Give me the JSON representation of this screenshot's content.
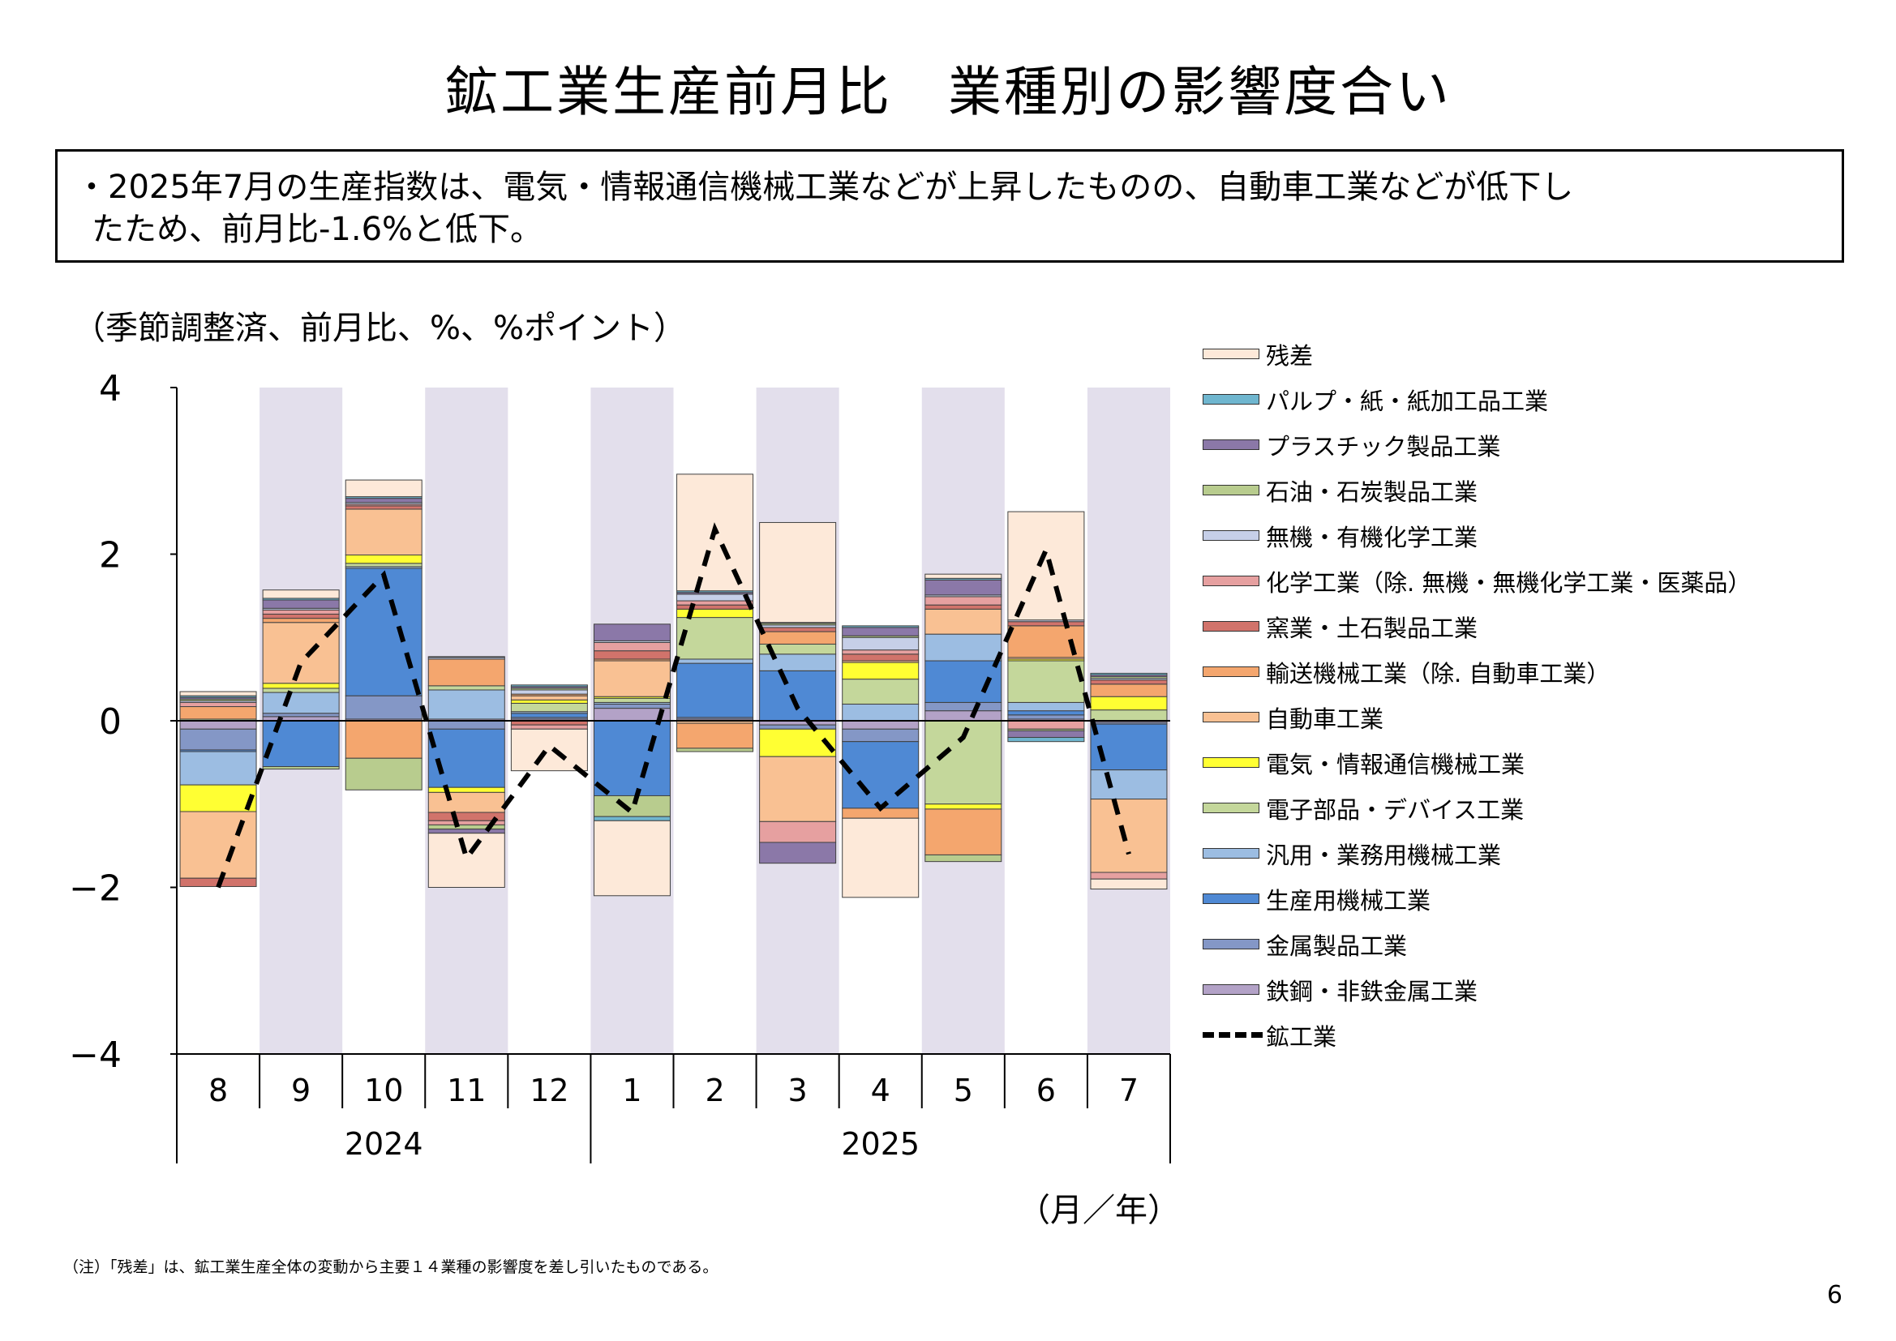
{
  "title": "鉱工業生産前月比　業種別の影響度合い",
  "summary": {
    "line1": "・2025年7月の生産指数は、電気・情報通信機械工業などが上昇したものの、自動車工業などが低下し",
    "line2": "たため、前月比-1.6%と低下。"
  },
  "unit_label": "（季節調整済、前月比、%、%ポイント）",
  "x_unit_label": "（月／年）",
  "footnote": "（注）「残差」は、鉱工業生産全体の変動から主要１４業種の影響度を差し引いたものである。",
  "page_number": "6",
  "chart_data": {
    "type": "bar",
    "stacked": true,
    "categories": [
      "8",
      "9",
      "10",
      "11",
      "12",
      "1",
      "2",
      "3",
      "4",
      "5",
      "6",
      "7"
    ],
    "year_groups": [
      {
        "label": "2024",
        "count": 5
      },
      {
        "label": "2025",
        "count": 7
      }
    ],
    "shaded_months": [
      "9",
      "11",
      "1",
      "3",
      "5",
      "7"
    ],
    "shade_color": "#e3dfec",
    "ylim": [
      -4,
      4
    ],
    "yticks": [
      4,
      2,
      0,
      -2,
      -4
    ],
    "yticklabels": [
      "4",
      "2",
      "0",
      "−2",
      "−4"
    ],
    "series": [
      {
        "name": "鉄鋼・非鉄金属工業",
        "color": "#b3a2c7",
        "values": [
          -0.1,
          0.05,
          0.02,
          0.02,
          0.02,
          0.15,
          0.02,
          -0.05,
          -0.1,
          0.12,
          0.02,
          -0.02
        ]
      },
      {
        "name": "金属製品工業",
        "color": "#8497c6",
        "values": [
          -0.25,
          0.04,
          0.28,
          -0.1,
          0.02,
          0.05,
          0.02,
          -0.05,
          -0.15,
          0.1,
          0.05,
          -0.02
        ]
      },
      {
        "name": "生産用機械工業",
        "color": "#4f89d4",
        "values": [
          -0.02,
          -0.55,
          1.53,
          -0.7,
          0.05,
          -0.9,
          0.65,
          0.6,
          -0.8,
          0.5,
          0.05,
          -0.55
        ]
      },
      {
        "name": "汎用・業務用機械工業",
        "color": "#9cbde2",
        "values": [
          -0.4,
          0.25,
          0.02,
          0.35,
          0.02,
          0.02,
          0.05,
          0.2,
          0.2,
          0.32,
          0.1,
          -0.35
        ]
      },
      {
        "name": "電子部品・デバイス工業",
        "color": "#c4d79b",
        "values": [
          0.02,
          0.05,
          0.04,
          0.05,
          0.1,
          0.05,
          0.5,
          0.12,
          0.3,
          -1.0,
          0.5,
          0.13
        ]
      },
      {
        "name": "電気・情報通信機械工業",
        "color": "#ffff33",
        "values": [
          -0.32,
          0.06,
          0.1,
          -0.06,
          0.04,
          0.02,
          0.1,
          -0.33,
          0.2,
          -0.06,
          0.02,
          0.16
        ]
      },
      {
        "name": "自動車工業",
        "color": "#f9c193",
        "values": [
          -0.8,
          0.73,
          0.55,
          -0.24,
          0.05,
          0.43,
          -0.03,
          -0.78,
          0.02,
          0.3,
          0.02,
          -0.88
        ]
      },
      {
        "name": "輸送機械工業（除. 自動車工業）",
        "color": "#f4a66e",
        "values": [
          0.15,
          0.05,
          -0.45,
          0.32,
          0.02,
          0.02,
          -0.3,
          0.15,
          -0.12,
          -0.55,
          0.38,
          0.15
        ]
      },
      {
        "name": "窯業・土石製品工業",
        "color": "#d1736b",
        "values": [
          -0.1,
          0.05,
          0.04,
          -0.1,
          -0.05,
          0.1,
          0.05,
          0.05,
          0.08,
          0.05,
          0.05,
          0.05
        ]
      },
      {
        "name": "化学工業（除. 無機・無機化学工業・医薬品）",
        "color": "#e6a0a0",
        "values": [
          0.05,
          0.05,
          0.02,
          -0.05,
          -0.05,
          0.1,
          0.05,
          -0.25,
          0.05,
          0.1,
          -0.1,
          -0.08
        ]
      },
      {
        "name": "無機・有機化学工業",
        "color": "#c6cfe8",
        "values": [
          0.02,
          0.02,
          0.02,
          0.02,
          0.05,
          0.02,
          0.08,
          0.03,
          0.15,
          0.02,
          0.02,
          0.02
        ]
      },
      {
        "name": "石油・石炭製品工業",
        "color": "#b8cc8e",
        "values": [
          0.02,
          -0.03,
          -0.38,
          -0.05,
          0.02,
          -0.25,
          -0.04,
          0.02,
          0.02,
          -0.08,
          -0.02,
          0.02
        ]
      },
      {
        "name": "プラスチック製品工業",
        "color": "#8b78a8",
        "values": [
          0.02,
          0.1,
          0.05,
          -0.05,
          0.02,
          0.2,
          0.02,
          -0.25,
          0.1,
          0.18,
          -0.08,
          0.02
        ]
      },
      {
        "name": "パルプ・紙・紙加工品工業",
        "color": "#6fb6cf",
        "values": [
          0.02,
          0.02,
          0.02,
          0.01,
          0.02,
          -0.05,
          0.02,
          0.01,
          0.02,
          0.02,
          -0.05,
          0.02
        ]
      },
      {
        "name": "残差",
        "color": "#fde9d9",
        "values": [
          0.05,
          0.1,
          0.2,
          -0.65,
          -0.5,
          -0.9,
          1.4,
          1.2,
          -0.95,
          0.05,
          1.3,
          -0.12
        ]
      }
    ],
    "total_line": {
      "name": "鉱工業",
      "style": "dashed",
      "color": "#000000",
      "values": [
        -2.0,
        0.7,
        1.75,
        -1.65,
        -0.3,
        -1.1,
        2.3,
        0.15,
        -1.05,
        -0.2,
        2.05,
        -1.6
      ]
    }
  }
}
